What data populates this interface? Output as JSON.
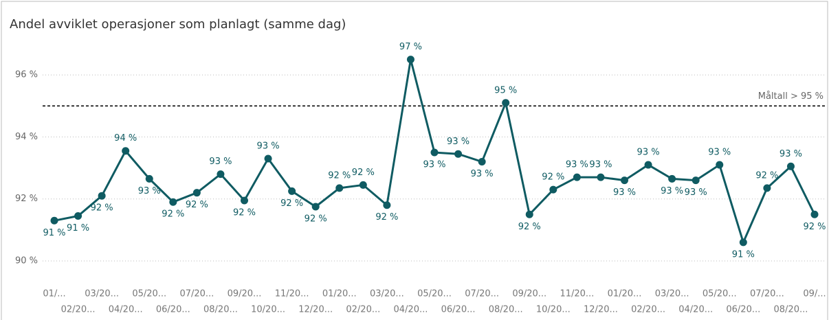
{
  "chart_data": {
    "type": "line",
    "title": "Andel avviklet operasjoner som planlagt (samme dag)",
    "categories": [
      "01/...",
      "02/20...",
      "03/20...",
      "04/20...",
      "05/20...",
      "06/20...",
      "07/20...",
      "08/20...",
      "09/20...",
      "10/20...",
      "11/20...",
      "12/20...",
      "01/20...",
      "02/20...",
      "03/20...",
      "04/20...",
      "05/20...",
      "06/20...",
      "07/20...",
      "08/20...",
      "09/20...",
      "10/20...",
      "11/20...",
      "12/20...",
      "01/20...",
      "02/20...",
      "03/20...",
      "04/20...",
      "05/20...",
      "06/20...",
      "07/20...",
      "08/20...",
      "09/..."
    ],
    "series": [
      {
        "color": "#0f5b62",
        "values": [
          91.3,
          91.45,
          92.1,
          93.55,
          92.65,
          91.9,
          92.2,
          92.8,
          91.95,
          93.3,
          92.25,
          91.75,
          92.35,
          92.45,
          91.8,
          96.5,
          93.5,
          93.45,
          93.2,
          95.1,
          91.5,
          92.3,
          92.7,
          92.7,
          92.6,
          93.1,
          92.65,
          92.6,
          93.1,
          90.6,
          92.35,
          93.05,
          91.5
        ],
        "value_labels": [
          "91 %",
          "91 %",
          "92 %",
          "94 %",
          "93 %",
          "92 %",
          "92 %",
          "93 %",
          "92 %",
          "93 %",
          "92 %",
          "92 %",
          "92 %",
          "92 %",
          "92 %",
          "97 %",
          "93 %",
          "93 %",
          "93 %",
          "95 %",
          "92 %",
          "92 %",
          "93 %",
          "93 %",
          "93 %",
          "93 %",
          "93 %",
          "93 %",
          "93 %",
          "91 %",
          "92 %",
          "93 %",
          "92 %"
        ]
      }
    ],
    "ylim": [
      89.8,
      97.2
    ],
    "yticks": [
      {
        "value": 90,
        "label": "90 %"
      },
      {
        "value": 92,
        "label": "92 %"
      },
      {
        "value": 94,
        "label": "94 %"
      },
      {
        "value": 96,
        "label": "96 %"
      }
    ],
    "grid": true,
    "annotations": [
      {
        "text": "Måltall > 95 %",
        "value": 95
      }
    ]
  }
}
